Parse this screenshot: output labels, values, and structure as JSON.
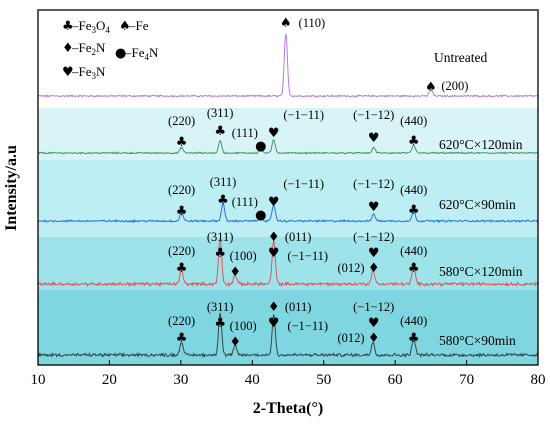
{
  "chart_data": {
    "type": "line",
    "xlabel": "2-Theta(°)",
    "ylabel": "Intensity/a.u",
    "xlim": [
      10,
      80
    ],
    "x_ticks": [
      "10",
      "20",
      "30",
      "40",
      "50",
      "60",
      "70",
      "80"
    ],
    "grid": false,
    "legend": {
      "placement": "top-left",
      "entries": [
        {
          "symbol": "♣",
          "prefix": "–Fe",
          "s1": "3",
          "mid": "O",
          "s2": "4"
        },
        {
          "symbol": "♠",
          "prefix": "–Fe",
          "s1": "",
          "mid": "",
          "s2": ""
        },
        {
          "symbol": "♦",
          "prefix": "–Fe",
          "s1": "2",
          "mid": "N",
          "s2": ""
        },
        {
          "symbol": "●",
          "prefix": "–Fe",
          "s1": "4",
          "mid": "N",
          "s2": ""
        },
        {
          "symbol": "♥",
          "prefix": "–Fe",
          "s1": "3",
          "mid": "N",
          "s2": ""
        }
      ]
    },
    "series": [
      {
        "name": "Untreated",
        "color": "#b57be0",
        "band_color": "#ffffff",
        "peaks": [
          [
            44.7,
            1.0
          ],
          [
            65.0,
            0.12
          ]
        ],
        "annotations": [
          {
            "symbol": "♠",
            "label": "(110)",
            "x": 44.7
          },
          {
            "symbol": "♠",
            "label": "(200)",
            "x": 65.0
          }
        ]
      },
      {
        "name": "620°C×120min",
        "color": "#3a9a6a",
        "band_color": "#d8f4f7",
        "peaks": [
          [
            30.1,
            0.25
          ],
          [
            35.5,
            0.55
          ],
          [
            41.2,
            0.22
          ],
          [
            43.0,
            0.6
          ],
          [
            57.0,
            0.25
          ],
          [
            62.6,
            0.35
          ]
        ],
        "annotations": [
          {
            "symbol": "♣",
            "label": "(220)",
            "x": 30.1
          },
          {
            "symbol": "♣",
            "label": "(311)",
            "x": 35.5
          },
          {
            "symbol": "●",
            "label": "(111)",
            "x": 41.2
          },
          {
            "symbol": "♥",
            "label": "(−1−11)",
            "x": 43.0
          },
          {
            "symbol": "♥",
            "label": "(−1−12)",
            "x": 57.0
          },
          {
            "symbol": "♣",
            "label": "(440)",
            "x": 62.6
          }
        ]
      },
      {
        "name": "620°C×90min",
        "color": "#2277dd",
        "band_color": "#bdeef3",
        "peaks": [
          [
            30.1,
            0.3
          ],
          [
            35.9,
            0.65
          ],
          [
            41.2,
            0.22
          ],
          [
            43.0,
            0.6
          ],
          [
            57.0,
            0.25
          ],
          [
            62.6,
            0.4
          ]
        ],
        "annotations": [
          {
            "symbol": "♣",
            "label": "(220)",
            "x": 30.1
          },
          {
            "symbol": "♣",
            "label": "(311)",
            "x": 35.9
          },
          {
            "symbol": "●",
            "label": "(111)",
            "x": 41.2
          },
          {
            "symbol": "♥",
            "label": "(−1−11)",
            "x": 43.0
          },
          {
            "symbol": "♥",
            "label": "(−1−12)",
            "x": 57.0
          },
          {
            "symbol": "♣",
            "label": "(440)",
            "x": 62.6
          }
        ]
      },
      {
        "name": "580°C×120min",
        "color": "#d9585b",
        "band_color": "#9fe3ea",
        "peaks": [
          [
            30.1,
            0.3
          ],
          [
            35.5,
            1.0
          ],
          [
            37.6,
            0.2
          ],
          [
            43.0,
            0.95
          ],
          [
            56.9,
            0.3
          ],
          [
            62.6,
            0.4
          ]
        ],
        "annotations": [
          {
            "symbol": "♣",
            "label": "(220)",
            "x": 30.1
          },
          {
            "symbol": "♣",
            "label": "(311)",
            "x": 35.5
          },
          {
            "symbol": "♦",
            "label": "(100)",
            "x": 37.6
          },
          {
            "symbol": "♦",
            "label": "(011)",
            "x": 42.5
          },
          {
            "symbol": "♥",
            "label": "(−1−11)",
            "x": 43.0
          },
          {
            "symbol": "♦",
            "label": "(012)",
            "x": 56.9
          },
          {
            "symbol": "♥",
            "label": "(−1−12)",
            "x": 57.0
          },
          {
            "symbol": "♣",
            "label": "(440)",
            "x": 62.6
          }
        ]
      },
      {
        "name": "580°C×90min",
        "color": "#2f4a4a",
        "band_color": "#7fd6e0",
        "peaks": [
          [
            30.1,
            0.3
          ],
          [
            35.5,
            0.95
          ],
          [
            37.6,
            0.2
          ],
          [
            43.0,
            0.9
          ],
          [
            56.9,
            0.3
          ],
          [
            62.6,
            0.4
          ]
        ],
        "annotations": [
          {
            "symbol": "♣",
            "label": "(220)",
            "x": 30.1
          },
          {
            "symbol": "♣",
            "label": "(311)",
            "x": 35.5
          },
          {
            "symbol": "♦",
            "label": "(100)",
            "x": 37.6
          },
          {
            "symbol": "♦",
            "label": "(011)",
            "x": 42.5
          },
          {
            "symbol": "♥",
            "label": "(−1−11)",
            "x": 43.0
          },
          {
            "symbol": "♦",
            "label": "(012)",
            "x": 56.9
          },
          {
            "symbol": "♥",
            "label": "(−1−12)",
            "x": 57.0
          },
          {
            "symbol": "♣",
            "label": "(440)",
            "x": 62.6
          }
        ]
      }
    ]
  }
}
